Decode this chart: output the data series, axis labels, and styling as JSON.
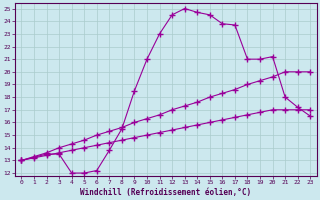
{
  "xlabel": "Windchill (Refroidissement éolien,°C)",
  "background_color": "#cce8ee",
  "grid_color": "#aacccc",
  "line_color": "#990099",
  "xlim": [
    -0.5,
    23.5
  ],
  "ylim": [
    11.8,
    25.4
  ],
  "xticks": [
    0,
    1,
    2,
    3,
    4,
    5,
    6,
    7,
    8,
    9,
    10,
    11,
    12,
    13,
    14,
    15,
    16,
    17,
    18,
    19,
    20,
    21,
    22,
    23
  ],
  "yticks": [
    12,
    13,
    14,
    15,
    16,
    17,
    18,
    19,
    20,
    21,
    22,
    23,
    24,
    25
  ],
  "line1": {
    "x": [
      0,
      1,
      2,
      3,
      4,
      5,
      6,
      7,
      8,
      9,
      10,
      11,
      12,
      13,
      14,
      15,
      16,
      17,
      18,
      19,
      20,
      21,
      22,
      23
    ],
    "y": [
      13.0,
      13.2,
      13.4,
      13.6,
      13.8,
      14.0,
      14.2,
      14.4,
      14.6,
      14.8,
      15.0,
      15.2,
      15.4,
      15.6,
      15.8,
      16.0,
      16.2,
      16.4,
      16.6,
      16.8,
      17.0,
      17.0,
      17.0,
      17.0
    ]
  },
  "line2": {
    "x": [
      0,
      1,
      2,
      3,
      4,
      5,
      6,
      7,
      8,
      9,
      10,
      11,
      12,
      13,
      14,
      15,
      16,
      17,
      18,
      19,
      20,
      21,
      22,
      23
    ],
    "y": [
      13.0,
      13.3,
      13.6,
      14.0,
      14.3,
      14.6,
      15.0,
      15.3,
      15.6,
      16.0,
      16.3,
      16.6,
      17.0,
      17.3,
      17.6,
      18.0,
      18.3,
      18.6,
      19.0,
      19.3,
      19.6,
      20.0,
      20.0,
      20.0
    ]
  },
  "line3": {
    "x": [
      0,
      2,
      3,
      4,
      5,
      6,
      7,
      8,
      9,
      10,
      11,
      12,
      13,
      14,
      15,
      16,
      17,
      18,
      19,
      20,
      21,
      22,
      23
    ],
    "y": [
      13.0,
      13.5,
      13.5,
      12.0,
      12.0,
      12.2,
      13.8,
      15.5,
      18.5,
      21.0,
      23.0,
      24.5,
      25.0,
      24.7,
      24.5,
      23.8,
      23.7,
      21.0,
      21.0,
      21.2,
      18.0,
      17.2,
      16.5
    ]
  },
  "marker": "+",
  "markersize": 4,
  "markeredgewidth": 1.0,
  "linewidth": 0.8
}
